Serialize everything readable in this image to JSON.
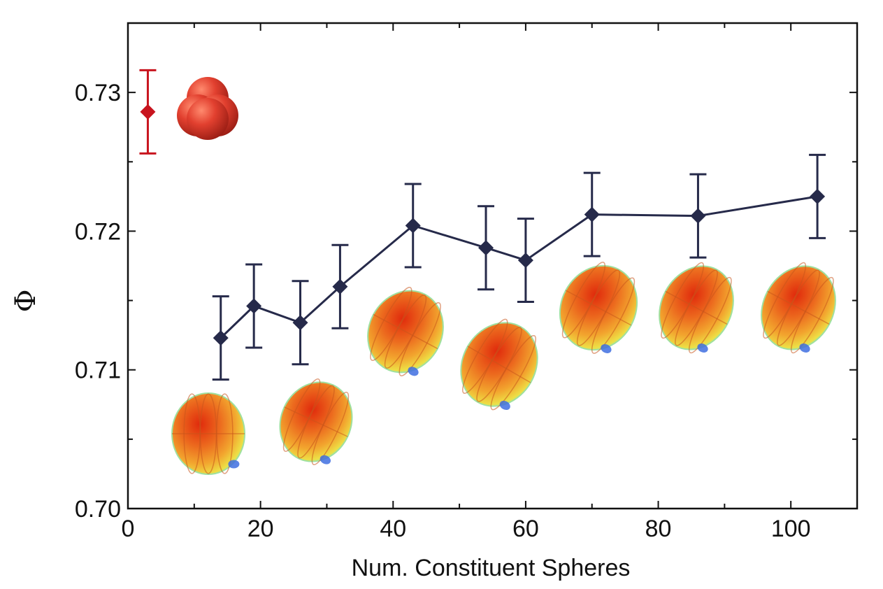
{
  "chart_data": {
    "type": "line",
    "title": "",
    "xlabel": "Num. Constituent Spheres",
    "ylabel": "Φ",
    "xlim": [
      0,
      110
    ],
    "ylim": [
      0.7,
      0.735
    ],
    "x_ticks": [
      0,
      20,
      40,
      60,
      80,
      100
    ],
    "x_tick_labels": [
      "0",
      "20",
      "40",
      "60",
      "80",
      "100"
    ],
    "y_ticks": [
      0.7,
      0.71,
      0.72,
      0.73
    ],
    "y_tick_labels": [
      "0.70",
      "0.71",
      "0.72",
      "0.73"
    ],
    "grid": false,
    "series": [
      {
        "name": "spheroid clusters",
        "color": "#262a4a",
        "marker": "diamond",
        "x": [
          14,
          19,
          26,
          32,
          43,
          54,
          60,
          70,
          86,
          104
        ],
        "y": [
          0.7123,
          0.7146,
          0.7134,
          0.716,
          0.7204,
          0.7188,
          0.7179,
          0.7212,
          0.7211,
          0.7225
        ],
        "yerr": [
          0.003,
          0.003,
          0.003,
          0.003,
          0.003,
          0.003,
          0.003,
          0.003,
          0.003,
          0.003
        ]
      },
      {
        "name": "trimer",
        "color": "#c8141e",
        "marker": "diamond",
        "x": [
          3
        ],
        "y": [
          0.7286
        ],
        "yerr": [
          0.003
        ]
      }
    ],
    "annotations": [
      {
        "kind": "trimer-render",
        "color": "#d9382a"
      },
      {
        "kind": "spheroid-render",
        "near_x": 14
      },
      {
        "kind": "spheroid-render",
        "near_x": 26
      },
      {
        "kind": "spheroid-render",
        "near_x": 43
      },
      {
        "kind": "spheroid-render",
        "near_x": 54
      },
      {
        "kind": "spheroid-render",
        "near_x": 70
      },
      {
        "kind": "spheroid-render",
        "near_x": 86
      },
      {
        "kind": "spheroid-render",
        "near_x": 104
      }
    ]
  }
}
